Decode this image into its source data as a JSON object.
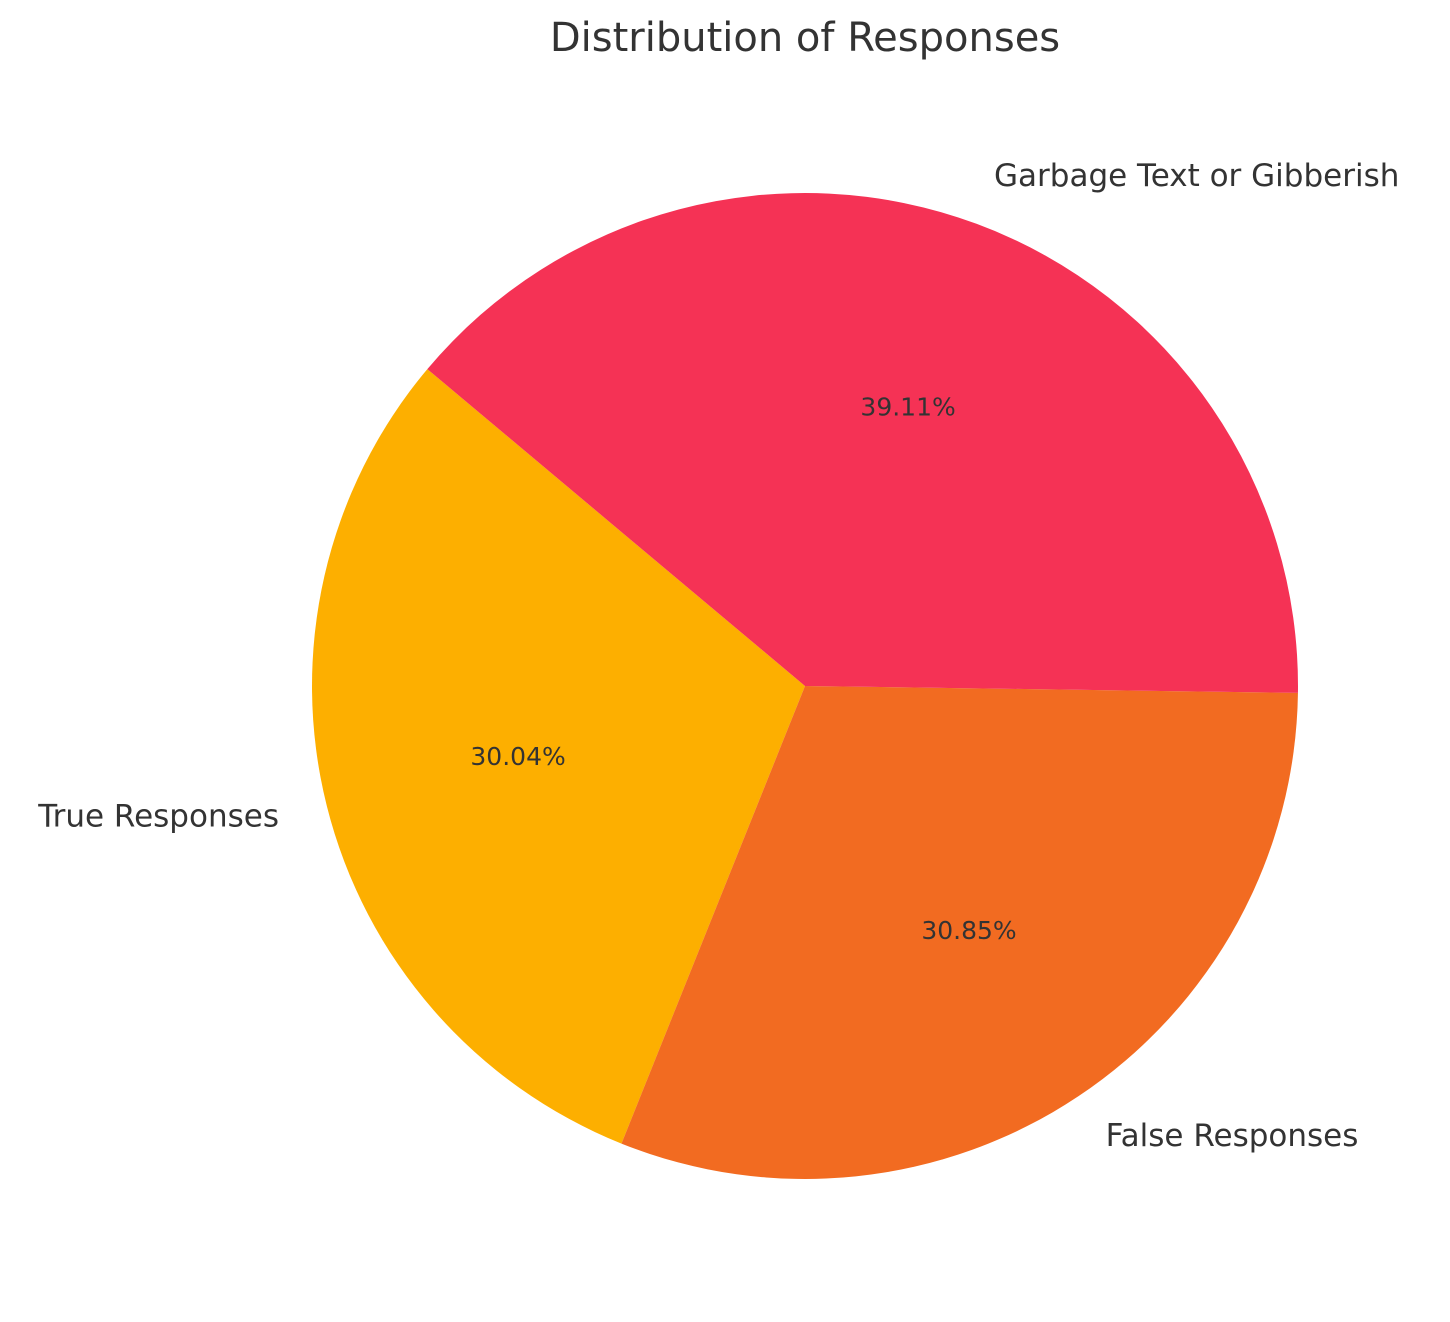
{
  "chart_data": {
    "type": "pie",
    "title": "Distribution of Responses",
    "categories": [
      "True Responses",
      "False Responses",
      "Garbage Text or Gibberish"
    ],
    "values": [
      30.04,
      30.85,
      39.11
    ],
    "value_labels": [
      "30.04%",
      "30.85%",
      "39.11%"
    ],
    "colors": [
      "#fdaf00",
      "#f26b21",
      "#f53255"
    ],
    "start_angle": 140
  }
}
